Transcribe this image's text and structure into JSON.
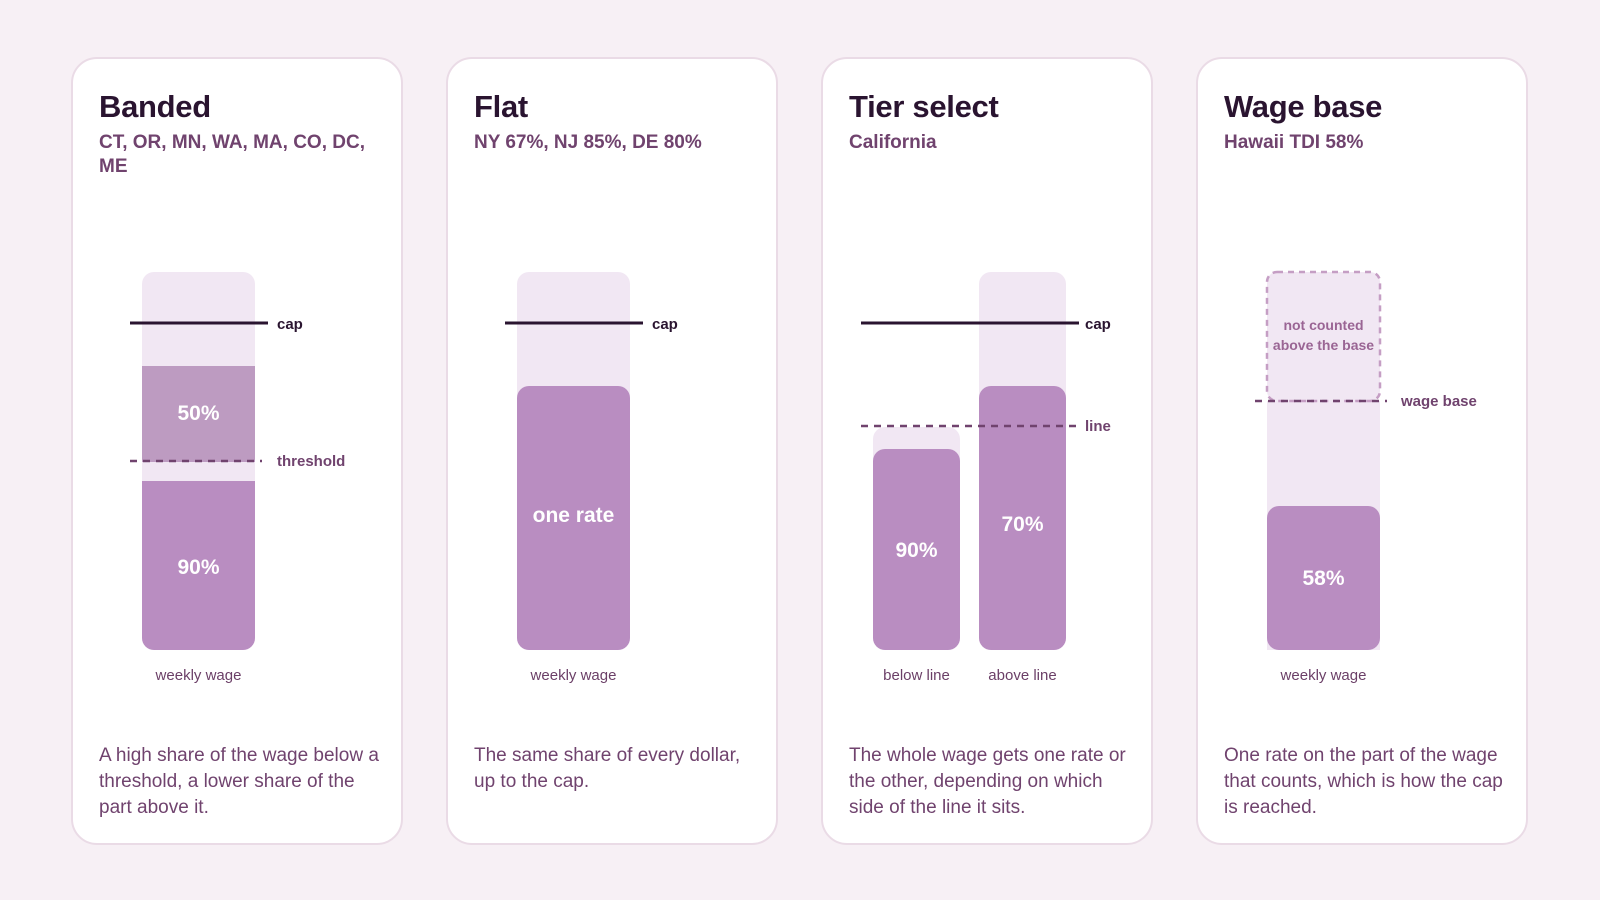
{
  "colors": {
    "background": "#f7f0f5",
    "card": "#ffffff",
    "track": "#f1e7f3",
    "fill": "#b98dc1",
    "fill_upper": "#bd9bc1",
    "cap_line": "#2a1430",
    "dashed_line": "#70436e",
    "title": "#2a1430",
    "subtitle": "#70436e"
  },
  "cards": [
    {
      "title": "Banded",
      "subtitle": "CT, OR, MN, WA, MA, CO, DC, ME",
      "segments": {
        "lower": "90%",
        "upper": "50%"
      },
      "marks": {
        "cap": "cap",
        "threshold": "threshold"
      },
      "axis_label": "weekly wage",
      "description": "A high share of the wage below a threshold, a lower share of the part above it."
    },
    {
      "title": "Flat",
      "subtitle": "NY 67%, NJ 85%, DE 80%",
      "segments": {
        "single": "one rate"
      },
      "marks": {
        "cap": "cap"
      },
      "axis_label": "weekly wage",
      "description": "The same share of every dollar, up to the cap."
    },
    {
      "title": "Tier select",
      "subtitle": "California",
      "segments": {
        "below": "90%",
        "above": "70%"
      },
      "marks": {
        "cap": "cap",
        "line": "line"
      },
      "axis_labels": {
        "below": "below line",
        "above": "above line"
      },
      "description": "The whole wage gets one rate or the other, depending on which side of the line it sits."
    },
    {
      "title": "Wage base",
      "subtitle": "Hawaii TDI 58%",
      "segments": {
        "counted": "58%",
        "not_counted": [
          "not counted",
          "above the base"
        ]
      },
      "marks": {
        "wage_base": "wage base"
      },
      "axis_label": "weekly wage",
      "description": "One rate on the part of the wage that counts, which is how the cap is reached."
    }
  ]
}
